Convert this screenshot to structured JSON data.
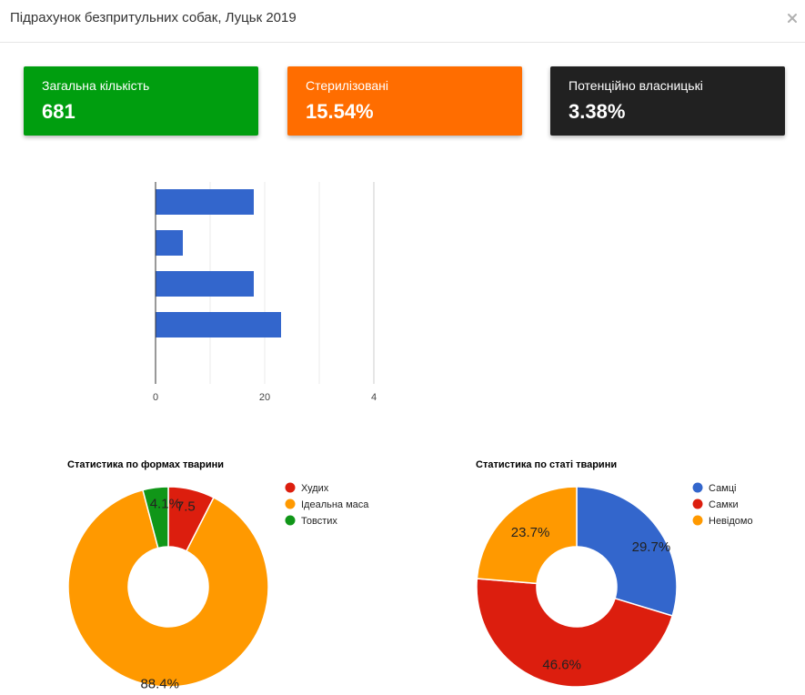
{
  "header": {
    "title": "Підрахунок безпритульних собак, Луцьк 2019"
  },
  "colors": {
    "green": "#009e0f",
    "orange": "#ff6d00",
    "dark": "#212121",
    "bar_blue": "#3366cc",
    "red": "#dc1e0e",
    "amber": "#ff9900",
    "pie_green": "#109618"
  },
  "cards": [
    {
      "label": "Загальна кількість",
      "value": "681",
      "color": "#009e0f"
    },
    {
      "label": "Стерилізовані",
      "value": "15.54%",
      "color": "#ff6d00"
    },
    {
      "label": "Потенційно власницькі",
      "value": "3.38%",
      "color": "#212121"
    }
  ],
  "chart_data": [
    {
      "type": "bar",
      "orientation": "horizontal",
      "values": [
        18,
        5,
        18,
        23
      ],
      "xlim": [
        0,
        40
      ],
      "xticks": [
        "0",
        "20",
        "4"
      ],
      "color": "#3366cc",
      "grid": true
    },
    {
      "type": "pie",
      "donut": true,
      "title": "Статистика по формах тварини",
      "labels": [
        "Худих",
        "Ідеальна маса",
        "Товстих"
      ],
      "values": [
        7.5,
        88.4,
        4.1
      ],
      "value_labels": [
        "7.5",
        "88.4%",
        "4.1%"
      ],
      "colors": [
        "#dc1e0e",
        "#ff9900",
        "#109618"
      ],
      "legend": "right"
    },
    {
      "type": "pie",
      "donut": true,
      "title": "Статистика по статі тварини",
      "labels": [
        "Самці",
        "Самки",
        "Невідомо"
      ],
      "values": [
        29.7,
        46.6,
        23.7
      ],
      "value_labels": [
        "29.7%",
        "46.6%",
        "23.7%"
      ],
      "colors": [
        "#3366cc",
        "#dc1e0e",
        "#ff9900"
      ],
      "legend": "right"
    }
  ]
}
